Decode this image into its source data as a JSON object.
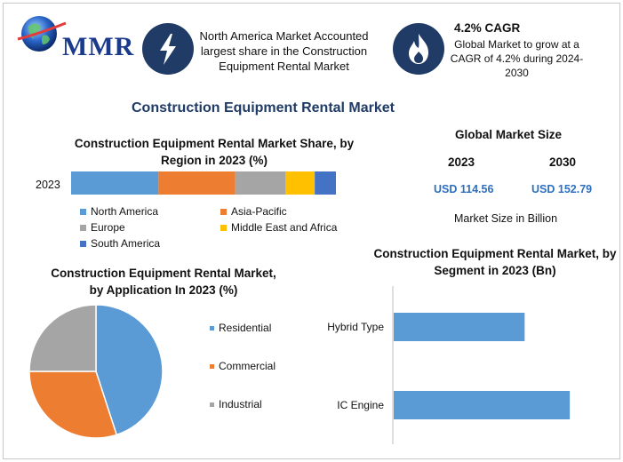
{
  "header": {
    "logo_text": "MMR",
    "info_left": "North America Market Accounted largest share in the Construction Equipment Rental Market",
    "cagr_title": "4.2% CAGR",
    "cagr_text": "Global Market to grow at a CAGR of 4.2% during 2024-2030",
    "icon_left": "lightning-bolt-icon",
    "icon_right": "flame-icon"
  },
  "main_title": "Construction Equipment Rental Market",
  "global_market": {
    "title": "Global Market Size",
    "year_1": "2023",
    "year_2": "2030",
    "value_1": "USD 114.56",
    "value_2": "USD 152.79",
    "note": "Market Size in Billion"
  },
  "colors": {
    "blue": "#5b9bd5",
    "orange": "#ed7d31",
    "gray": "#a5a5a5",
    "yellow": "#ffc000",
    "darkblue": "#4472c4",
    "navy": "#1f3b66"
  },
  "chart_data": [
    {
      "type": "bar",
      "orientation": "horizontal-stacked",
      "title": "Construction Equipment Rental Market Share, by Region in 2023 (%)",
      "categories": [
        "2023"
      ],
      "series": [
        {
          "name": "North America",
          "values": [
            33
          ],
          "color": "#5b9bd5"
        },
        {
          "name": "Asia-Pacific",
          "values": [
            29
          ],
          "color": "#ed7d31"
        },
        {
          "name": "Europe",
          "values": [
            19
          ],
          "color": "#a5a5a5"
        },
        {
          "name": "Middle East and Africa",
          "values": [
            11
          ],
          "color": "#ffc000"
        },
        {
          "name": "South America",
          "values": [
            8
          ],
          "color": "#4472c4"
        }
      ],
      "legend_position": "bottom"
    },
    {
      "type": "pie",
      "title": "Construction Equipment Rental Market, by Application In 2023 (%)",
      "slices": [
        {
          "label": "Residential",
          "value": 45,
          "color": "#5b9bd5"
        },
        {
          "label": "Commercial",
          "value": 30,
          "color": "#ed7d31"
        },
        {
          "label": "Industrial",
          "value": 25,
          "color": "#a5a5a5"
        }
      ],
      "legend_position": "right"
    },
    {
      "type": "bar",
      "orientation": "horizontal",
      "title": "Construction Equipment Rental Market, by Segment in 2023 (Bn)",
      "categories": [
        "Hybrid Type",
        "IC Engine"
      ],
      "values": [
        58,
        78
      ],
      "xlim": [
        0,
        100
      ],
      "color": "#5b9bd5"
    }
  ]
}
